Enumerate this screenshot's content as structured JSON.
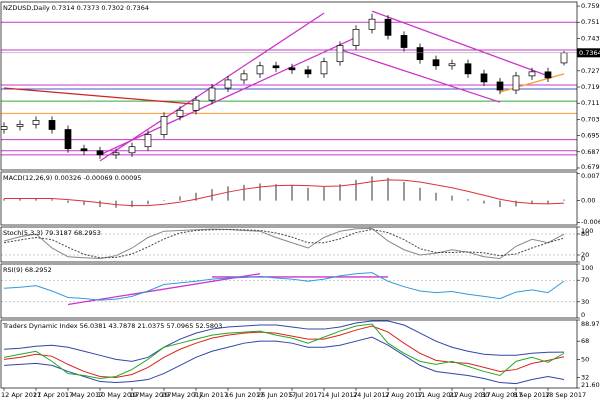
{
  "chart_data": [
    {
      "type": "candlestick",
      "title": "NZDUSD,Daily  0.7314 0.7373 0.7302 0.7364",
      "categories": [
        "12 Apr 2017",
        null,
        "21 Apr 2017",
        null,
        "1 May 2017",
        null,
        "10 May 2017",
        null,
        "19 May 2017",
        null,
        "29 May 2017",
        null,
        "7 Jun 2017",
        null,
        "16 Jun 2017",
        null,
        "26 Jun 2017",
        null,
        "5 Jul 2017",
        null,
        "14 Jul 2017",
        null,
        "24 Jul 2017",
        null,
        "2 Aug 2017",
        null,
        "11 Aug 2017",
        null,
        "21 Aug 2017",
        null,
        "30 Aug 2017",
        null,
        "8 Sep 2017",
        null,
        "18 Sep 2017",
        null
      ],
      "open": [
        0.6985,
        0.7,
        0.701,
        0.703,
        0.6985,
        0.689,
        0.688,
        0.686,
        0.687,
        0.69,
        0.696,
        0.705,
        0.708,
        0.713,
        0.719,
        0.723,
        0.726,
        0.73,
        0.729,
        0.728,
        0.726,
        0.732,
        0.74,
        0.748,
        0.753,
        0.745,
        0.739,
        0.733,
        0.73,
        0.731,
        0.726,
        0.722,
        0.718,
        0.725,
        0.727,
        0.7314
      ],
      "high": [
        0.702,
        0.703,
        0.705,
        0.705,
        0.7005,
        0.691,
        0.69,
        0.689,
        0.692,
        0.698,
        0.707,
        0.71,
        0.715,
        0.721,
        0.725,
        0.728,
        0.732,
        0.732,
        0.731,
        0.73,
        0.734,
        0.742,
        0.75,
        0.7557,
        0.755,
        0.747,
        0.741,
        0.735,
        0.733,
        0.733,
        0.728,
        0.724,
        0.727,
        0.729,
        0.729,
        0.7373
      ],
      "low": [
        0.6965,
        0.698,
        0.699,
        0.6965,
        0.687,
        0.686,
        0.684,
        0.684,
        0.685,
        0.688,
        0.694,
        0.703,
        0.706,
        0.711,
        0.717,
        0.721,
        0.724,
        0.727,
        0.726,
        0.724,
        0.724,
        0.73,
        0.738,
        0.746,
        0.743,
        0.737,
        0.731,
        0.728,
        0.728,
        0.724,
        0.72,
        0.716,
        0.716,
        0.723,
        0.722,
        0.7302
      ],
      "close": [
        0.7,
        0.701,
        0.703,
        0.6985,
        0.689,
        0.688,
        0.686,
        0.687,
        0.69,
        0.696,
        0.705,
        0.708,
        0.713,
        0.719,
        0.723,
        0.726,
        0.73,
        0.729,
        0.728,
        0.726,
        0.732,
        0.74,
        0.748,
        0.753,
        0.745,
        0.739,
        0.733,
        0.73,
        0.731,
        0.726,
        0.722,
        0.718,
        0.725,
        0.727,
        0.724,
        0.7364
      ],
      "last_price": 0.7364,
      "ylim": [
        0.6785,
        0.7615
      ],
      "yticks": [
        0.7595,
        0.7515,
        0.7435,
        0.7275,
        0.7195,
        0.7115,
        0.7035,
        0.6955,
        0.6875,
        0.6795
      ],
      "hlines": [
        {
          "value": 0.7515,
          "color": "#cc33cc"
        },
        {
          "value": 0.7378,
          "color": "#cc33cc"
        },
        {
          "value": 0.7205,
          "color": "#cc33cc"
        },
        {
          "value": 0.7185,
          "color": "#4455cc"
        },
        {
          "value": 0.7125,
          "color": "#33aa33"
        },
        {
          "value": 0.7065,
          "color": "#ff9933"
        },
        {
          "value": 0.6935,
          "color": "#cc33cc"
        },
        {
          "value": 0.688,
          "color": "#cc33cc"
        },
        {
          "value": 0.686,
          "color": "#cc33cc"
        }
      ],
      "trendlines": [
        {
          "from": [
            6,
            0.683
          ],
          "to": [
            20,
            0.756
          ],
          "color": "#cc33cc"
        },
        {
          "from": [
            6,
            0.686
          ],
          "to": [
            22,
            0.744
          ],
          "color": "#cc33cc"
        },
        {
          "from": [
            23,
            0.757
          ],
          "to": [
            34,
            0.725
          ],
          "color": "#cc33cc"
        },
        {
          "from": [
            21,
            0.738
          ],
          "to": [
            31,
            0.712
          ],
          "color": "#cc33cc"
        },
        {
          "from": [
            0,
            0.719
          ],
          "to": [
            12,
            0.711
          ],
          "color": "#cc2222"
        },
        {
          "from": [
            31,
            0.717
          ],
          "to": [
            35,
            0.726
          ],
          "color": "#ff9933"
        }
      ]
    },
    {
      "type": "indicator",
      "title": "MACD(12,26,9) 0.00326 -0.00069 0.00095",
      "ylim": [
        -0.0068,
        0.008
      ],
      "yticks": [
        0.00751,
        {
          "value": 0,
          "label": "0.00"
        },
        -0.00607
      ],
      "grid": false,
      "series": [
        {
          "style": "bar",
          "color": "#999999",
          "values": [
            0.0005,
            0.0006,
            0.0007,
            0.0004,
            -0.0006,
            -0.0012,
            -0.0018,
            -0.002,
            -0.0018,
            -0.001,
            0.0002,
            0.0012,
            0.0022,
            0.0032,
            0.004,
            0.0044,
            0.0048,
            0.0046,
            0.0042,
            0.0036,
            0.0038,
            0.0046,
            0.0058,
            0.0068,
            0.0064,
            0.0052,
            0.0036,
            0.0022,
            0.0014,
            0.0004,
            -0.0008,
            -0.0018,
            -0.0016,
            -0.001,
            -0.0008,
            0.0003
          ]
        },
        {
          "style": "line",
          "color": "#dd3333",
          "values": [
            0.0006,
            0.0006,
            0.0006,
            0.0006,
            0.0003,
            -0.0001,
            -0.0006,
            -0.0011,
            -0.0014,
            -0.0014,
            -0.001,
            -0.0004,
            0.0004,
            0.0014,
            0.0024,
            0.0032,
            0.0038,
            0.0042,
            0.0043,
            0.0042,
            0.004,
            0.0041,
            0.0046,
            0.0053,
            0.0058,
            0.0057,
            0.0052,
            0.0044,
            0.0036,
            0.0026,
            0.0015,
            0.0004,
            -0.0004,
            -0.0008,
            -0.0009,
            -0.0007
          ]
        }
      ]
    },
    {
      "type": "indicator",
      "title": "Stoch(5,3,3) 79.3187 68.2953",
      "ylim": [
        0,
        100
      ],
      "yticks": [
        100,
        80,
        20,
        0
      ],
      "grid": true,
      "series": [
        {
          "style": "line",
          "color": "#888888",
          "values": [
            60,
            72,
            80,
            40,
            15,
            12,
            10,
            18,
            40,
            70,
            88,
            90,
            92,
            94,
            93,
            90,
            88,
            70,
            55,
            40,
            70,
            88,
            95,
            96,
            60,
            35,
            20,
            25,
            35,
            28,
            15,
            10,
            45,
            65,
            55,
            79.3187
          ]
        },
        {
          "style": "dashed",
          "color": "#444444",
          "values": [
            55,
            63,
            70,
            64,
            42,
            22,
            12,
            13,
            23,
            43,
            66,
            83,
            90,
            92,
            93,
            92,
            90,
            83,
            71,
            55,
            55,
            66,
            84,
            93,
            84,
            64,
            38,
            27,
            27,
            29,
            26,
            18,
            23,
            40,
            55,
            68.2953
          ]
        }
      ]
    },
    {
      "type": "indicator",
      "title": "RSI(9) 68.2952",
      "ylim": [
        0,
        100
      ],
      "yticks": [
        100,
        70,
        30,
        0
      ],
      "grid": true,
      "series": [
        {
          "style": "line",
          "color": "#3399dd",
          "values": [
            55,
            57,
            60,
            50,
            38,
            36,
            33,
            35,
            40,
            50,
            62,
            65,
            68,
            72,
            74,
            75,
            77,
            74,
            72,
            68,
            72,
            78,
            82,
            84,
            68,
            58,
            50,
            47,
            49,
            44,
            40,
            36,
            48,
            52,
            47,
            68.2952
          ]
        }
      ],
      "trendlines": [
        {
          "from": [
            4,
            25
          ],
          "to": [
            16,
            82
          ],
          "color": "#cc33cc"
        },
        {
          "from": [
            13,
            76
          ],
          "to": [
            24,
            76
          ],
          "color": "#cc33cc"
        }
      ]
    },
    {
      "type": "indicator",
      "title": "Traders Dynamic Index 56.0381 43.7878 21.0375 57.0965 52.5803",
      "ylim": [
        21.6091,
        88.975
      ],
      "yticks": [
        88.975,
        68,
        50,
        32,
        21.6091
      ],
      "grid": false,
      "series": [
        {
          "style": "line",
          "color": "#3344aa",
          "values": [
            60,
            61,
            63,
            64,
            62,
            58,
            54,
            50,
            48,
            52,
            62,
            70,
            76,
            80,
            82,
            83,
            84,
            84,
            82,
            80,
            80,
            82,
            86,
            88,
            88,
            84,
            76,
            68,
            62,
            58,
            55,
            54,
            54,
            56,
            57,
            57.0965
          ]
        },
        {
          "style": "line",
          "color": "#3344aa",
          "values": [
            44,
            45,
            46,
            44,
            38,
            33,
            28,
            27,
            28,
            30,
            36,
            44,
            52,
            58,
            62,
            66,
            68,
            68,
            66,
            62,
            62,
            64,
            68,
            72,
            64,
            54,
            44,
            38,
            36,
            34,
            31,
            27,
            26,
            30,
            33,
            30
          ]
        },
        {
          "style": "line",
          "color": "#dd2222",
          "values": [
            50,
            52,
            55,
            53,
            45,
            38,
            33,
            32,
            35,
            42,
            52,
            60,
            66,
            71,
            74,
            76,
            77,
            76,
            73,
            70,
            70,
            74,
            79,
            83,
            77,
            66,
            56,
            49,
            47,
            46,
            42,
            38,
            40,
            46,
            49,
            52.5803
          ]
        },
        {
          "style": "line",
          "color": "#22aa22",
          "values": [
            52,
            55,
            58,
            48,
            36,
            34,
            31,
            33,
            40,
            50,
            62,
            66,
            70,
            74,
            76,
            77,
            78,
            74,
            71,
            66,
            72,
            78,
            83,
            85,
            66,
            56,
            48,
            45,
            48,
            43,
            38,
            34,
            48,
            52,
            47,
            56.0381
          ]
        }
      ]
    }
  ]
}
